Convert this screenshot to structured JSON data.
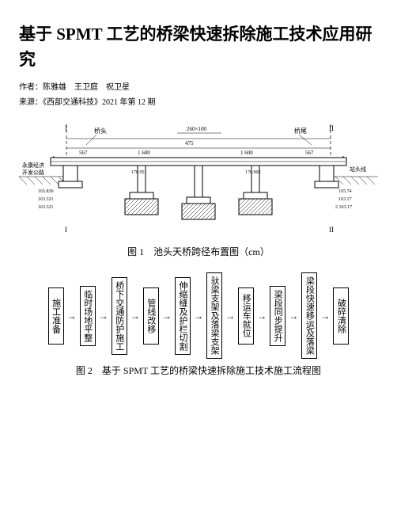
{
  "title": "基于 SPMT 工艺的桥梁快速拆除施工技术应用研究",
  "authors_label": "作者：",
  "authors": "陈雅雄　王卫庭　祝卫星",
  "source_label": "来源：",
  "source": "《西部交通科技》2021 年第 12 期",
  "fig1": {
    "caption": "图 1　池头天桥跨径布置图（cm）",
    "labels": {
      "left": "桥头",
      "right": "桥尾",
      "road_label": "永康经济\n开发公路",
      "right_road": "站头线",
      "center_dim": "260×100",
      "span_major": "1 600",
      "span_minor_l": "567",
      "span_minor_r": "567",
      "span_mid": "475",
      "pier_l": "170.951",
      "pier_r": "170.905",
      "abut_l1": "165.830",
      "abut_l2": "163.321",
      "abut_l3": "163.321",
      "abut_r1": "165.74",
      "abut_r2": "163.17",
      "abut_r3": "2 163.17",
      "axis_I": "I",
      "axis_II": "II"
    },
    "colors": {
      "line": "#000000",
      "ground": "#000000",
      "bg": "#ffffff"
    }
  },
  "fig2": {
    "caption": "图 2　基于 SPMT 工艺的桥梁快速拆除施工技术施工流程图",
    "steps": [
      "施工准备",
      "临时场地平整",
      "桥下交通防护施工",
      "管线改移",
      "伸缩缝及护栏切割",
      "驮梁支架及落梁支架",
      "移运车就位",
      "梁段同步提升",
      "梁段快速移运及落梁",
      "破碎清除"
    ],
    "arrow": "→",
    "box_border": "#000000",
    "box_bg": "#ffffff",
    "font_size_pt": 11
  }
}
